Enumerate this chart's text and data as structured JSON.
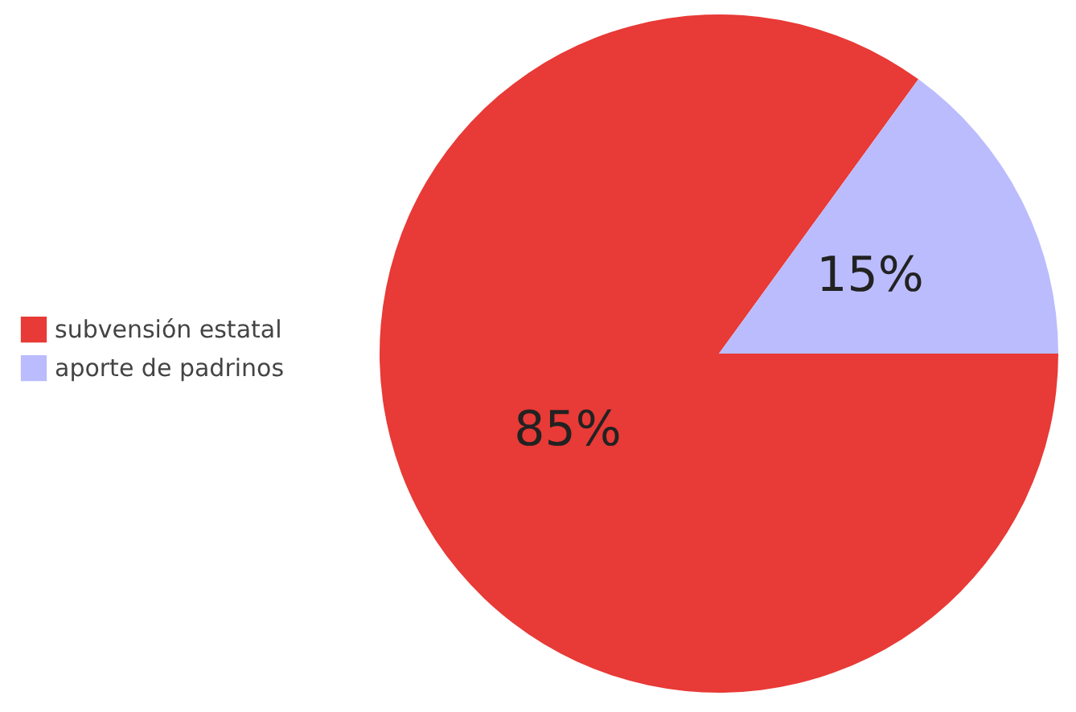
{
  "chart_data": {
    "type": "pie",
    "categories": [
      "subvensión estatal",
      "aporte de padrinos"
    ],
    "values": [
      85,
      15
    ],
    "colors": [
      "#e83a36",
      "#bbbcfe"
    ],
    "value_labels": [
      "85%",
      "15%"
    ],
    "legend": "left"
  }
}
